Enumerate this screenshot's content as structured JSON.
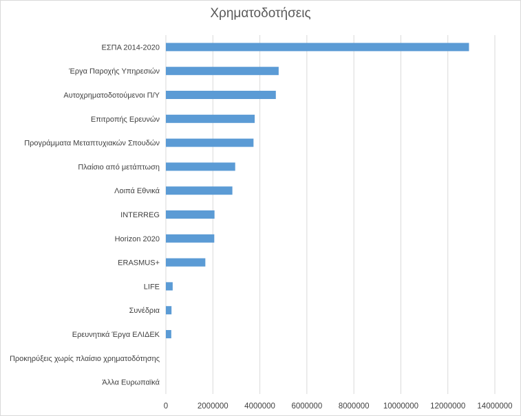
{
  "chart_data": {
    "type": "bar",
    "orientation": "horizontal",
    "title": "Χρηματοδοτήσεις",
    "xlabel": "",
    "ylabel": "",
    "categories": [
      "ΕΣΠΑ 2014-2020",
      "Έργα Παροχής Υπηρεσιών",
      "Αυτοχρηματοδοτούμενοι Π/Υ",
      "Επιτροπής Ερευνών",
      "Προγράμματα Μεταπτυχιακών Σπουδών",
      "Πλαίσιο από μετάπτωση",
      "Λοιπά Εθνικά",
      "INTERREG",
      "Horizon 2020",
      "ERASMUS+",
      "LIFE",
      "Συνέδρια",
      "Ερευνητικά Έργα ΕΛΙΔΕΚ",
      "Προκηρύξεις χωρίς πλαίσιο χρηματοδότησης",
      "Άλλα Ευρωπαϊκά"
    ],
    "values": [
      12900000,
      4800000,
      4680000,
      3780000,
      3730000,
      2950000,
      2830000,
      2070000,
      2060000,
      1680000,
      290000,
      240000,
      230000,
      0,
      0
    ],
    "xlim": [
      0,
      14000000
    ],
    "xticks": [
      0,
      2000000,
      4000000,
      6000000,
      8000000,
      10000000,
      12000000,
      14000000
    ],
    "xtick_labels": [
      "0",
      "2000000",
      "4000000",
      "6000000",
      "8000000",
      "10000000",
      "12000000",
      "14000000"
    ],
    "grid": "vertical",
    "legend": "none",
    "bar_color": "#5b9bd5",
    "grid_color": "#d9d9d9"
  }
}
